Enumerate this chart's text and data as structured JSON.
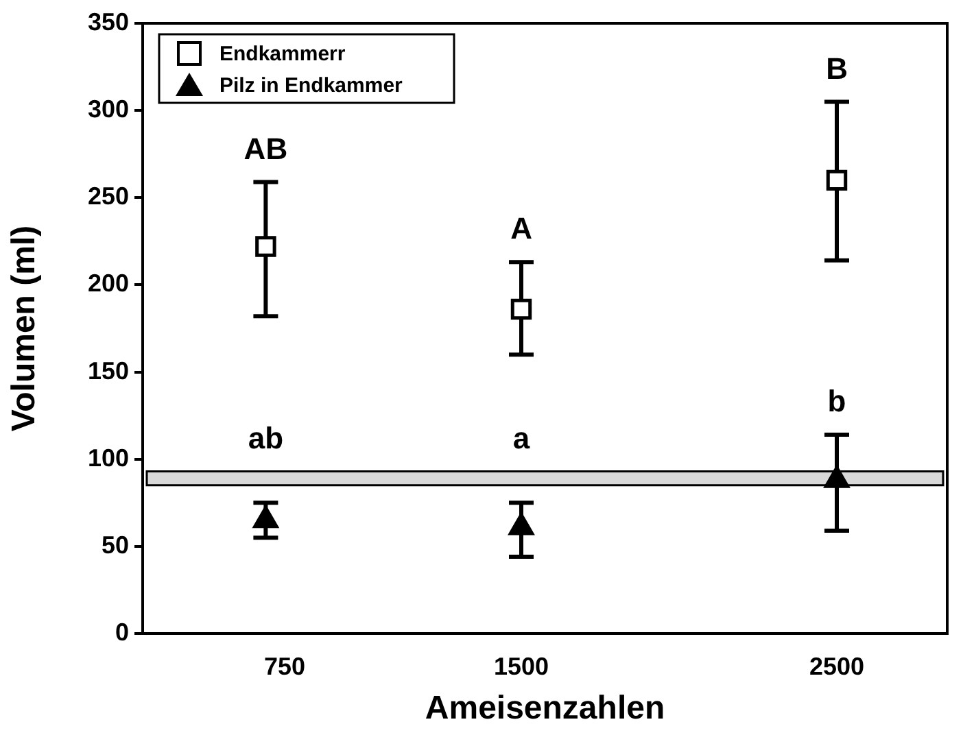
{
  "chart_data": {
    "type": "scatter",
    "xlabel": "Ameisenzahlen",
    "ylabel": "Volumen (ml)",
    "xlim": [
      300,
      2850
    ],
    "xticks": [
      750,
      1500,
      2500
    ],
    "ylim": [
      0,
      350
    ],
    "yticks": [
      0,
      50,
      100,
      150,
      200,
      250,
      300,
      350
    ],
    "grid": false,
    "legend": "top left",
    "series": [
      {
        "name": "Endkammerr",
        "color": "#000000",
        "marker": "square",
        "x": [
          690,
          1500,
          2500
        ],
        "values": [
          222,
          186,
          260
        ],
        "errors": [
          [
            182,
            259
          ],
          [
            160,
            213
          ],
          [
            214,
            305
          ]
        ]
      },
      {
        "name": "Pilz in Endkammer",
        "color": "#000000",
        "marker": "triangle",
        "x": [
          690,
          1500,
          2500
        ],
        "values": [
          65,
          61,
          88
        ],
        "errors": [
          [
            55,
            75
          ],
          [
            44,
            75
          ],
          [
            59,
            114
          ]
        ]
      }
    ],
    "bands": [
      {
        "axis": "y",
        "from": 85,
        "to": 93,
        "color": "#d9d9d9"
      }
    ],
    "annotations": [
      {
        "text": "AB",
        "x": 690,
        "y": 259
      },
      {
        "text": "A",
        "x": 1500,
        "y": 213
      },
      {
        "text": "B",
        "x": 2500,
        "y": 305
      },
      {
        "text": "ab",
        "x": 690,
        "y": 93
      },
      {
        "text": "a",
        "x": 1500,
        "y": 93
      },
      {
        "text": "b",
        "x": 2500,
        "y": 114
      }
    ]
  }
}
